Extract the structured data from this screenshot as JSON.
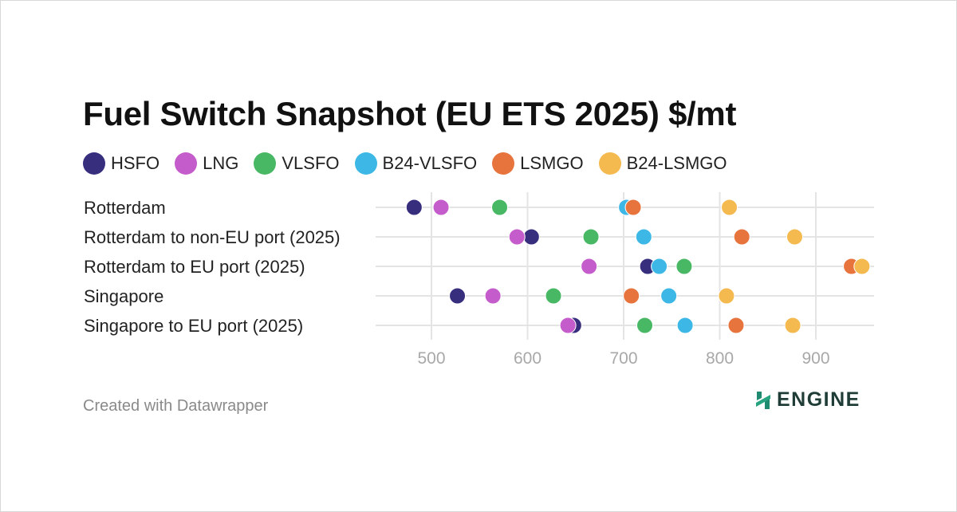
{
  "title": "Fuel Switch Snapshot (EU ETS 2025) $/mt",
  "footer": "Created with Datawrapper",
  "logo": {
    "text": "ENGINE",
    "icon": "engine-logo-icon",
    "color": "#1f8a70"
  },
  "legend": [
    {
      "name": "HSFO",
      "color": "#372f7e"
    },
    {
      "name": "LNG",
      "color": "#c55ccb"
    },
    {
      "name": "VLSFO",
      "color": "#48b865"
    },
    {
      "name": "B24-VLSFO",
      "color": "#3db8e6"
    },
    {
      "name": "LSMGO",
      "color": "#e8743d"
    },
    {
      "name": "B24-LSMGO",
      "color": "#f4b94f"
    }
  ],
  "chart_data": {
    "type": "scatter",
    "title": "Fuel Switch Snapshot (EU ETS 2025) $/mt",
    "xlabel": "",
    "ylabel": "",
    "xlim": [
      450,
      950
    ],
    "xticks": [
      500,
      600,
      700,
      800,
      900
    ],
    "grid": true,
    "categories": [
      "Rotterdam",
      "Rotterdam to non-EU port (2025)",
      "Rotterdam to EU port (2025)",
      "Singapore",
      "Singapore to EU port (2025)"
    ],
    "series": [
      {
        "name": "HSFO",
        "color": "#372f7e",
        "values": [
          482,
          604,
          725,
          527,
          648
        ]
      },
      {
        "name": "LNG",
        "color": "#c55ccb",
        "values": [
          510,
          589,
          664,
          564,
          642
        ]
      },
      {
        "name": "VLSFO",
        "color": "#48b865",
        "values": [
          571,
          666,
          763,
          627,
          722
        ]
      },
      {
        "name": "B24-VLSFO",
        "color": "#3db8e6",
        "values": [
          703,
          721,
          737,
          747,
          764
        ]
      },
      {
        "name": "LSMGO",
        "color": "#e8743d",
        "values": [
          710,
          823,
          937,
          708,
          817
        ]
      },
      {
        "name": "B24-LSMGO",
        "color": "#f4b94f",
        "values": [
          810,
          878,
          948,
          807,
          876
        ]
      }
    ]
  }
}
